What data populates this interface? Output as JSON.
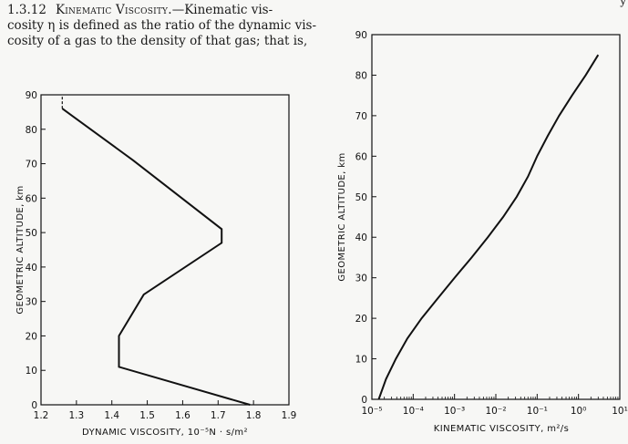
{
  "paragraph": {
    "section_number": "1.3.12",
    "section_title": "Kinematic Viscosity.",
    "line1_rest": "—Kinematic vis-",
    "line2": "cosity η is defined as the ratio of the dynamic vis-",
    "line3": "cosity of a gas to the density of that gas; that is,"
  },
  "corner_mark": "y",
  "chart_data": [
    {
      "type": "line",
      "title": "",
      "xlabel": "DYNAMIC VISCOSITY, 10⁻⁵N · s/m²",
      "ylabel": "GEOMETRIC ALTITUDE, km",
      "xlim": [
        1.2,
        1.9
      ],
      "ylim": [
        0,
        90
      ],
      "x_ticks": [
        "1.2",
        "1.3",
        "1.4",
        "1.5",
        "1.6",
        "1.7",
        "1.8",
        "1.9"
      ],
      "y_ticks": [
        "0",
        "10",
        "20",
        "30",
        "40",
        "50",
        "60",
        "70",
        "80",
        "90"
      ],
      "grid": false,
      "series": [
        {
          "points": [
            [
              1.79,
              0
            ],
            [
              1.42,
              11
            ],
            [
              1.42,
              20
            ],
            [
              1.49,
              32
            ],
            [
              1.71,
              47
            ],
            [
              1.71,
              51
            ],
            [
              1.46,
              71
            ],
            [
              1.26,
              86
            ]
          ]
        }
      ],
      "dashed_extension": [
        [
          1.26,
          86
        ],
        [
          1.26,
          90
        ]
      ]
    },
    {
      "type": "line",
      "title": "",
      "xlabel": "KINEMATIC VISCOSITY, m²/s",
      "ylabel": "GEOMETRIC ALTITUDE, km",
      "x_scale": "log",
      "xlim": [
        1e-05,
        10
      ],
      "ylim": [
        0,
        90
      ],
      "x_ticks": [
        "10⁻⁵",
        "10⁻⁴",
        "10⁻³",
        "10⁻²",
        "10⁻¹",
        "10⁰",
        "10¹"
      ],
      "y_ticks": [
        "0",
        "10",
        "20",
        "30",
        "40",
        "50",
        "60",
        "70",
        "80",
        "90"
      ],
      "grid": false,
      "series": [
        {
          "points": [
            [
              1.46e-05,
              0
            ],
            [
              2.2e-05,
              5
            ],
            [
              3.8e-05,
              10
            ],
            [
              7.2e-05,
              15
            ],
            [
              0.00016,
              20
            ],
            [
              0.0004,
              25
            ],
            [
              0.001,
              30
            ],
            [
              0.0026,
              35
            ],
            [
              0.0064,
              40
            ],
            [
              0.015,
              45
            ],
            [
              0.032,
              50
            ],
            [
              0.06,
              55
            ],
            [
              0.1,
              60
            ],
            [
              0.18,
              65
            ],
            [
              0.34,
              70
            ],
            [
              0.7,
              75
            ],
            [
              1.5,
              80
            ],
            [
              3.0,
              85
            ]
          ]
        }
      ]
    }
  ]
}
